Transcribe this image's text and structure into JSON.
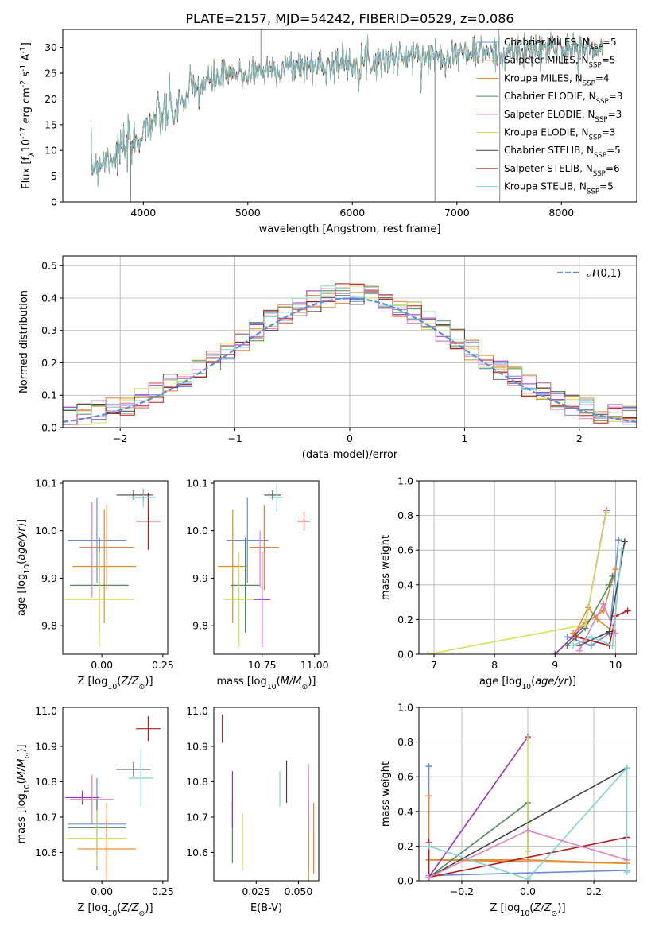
{
  "figure_title": "PLATE=2157, MJD=54242, FIBERID=0529, z=0.086",
  "fits": [
    {
      "label": "Chabrier MILES, N$_{SSP}$=5",
      "color": "#6b8fd6"
    },
    {
      "label": "Salpeter MILES, N$_{SSP}$=5",
      "color": "#e8823a"
    },
    {
      "label": "Kroupa MILES, N$_{SSP}$=4",
      "color": "#d9912b"
    },
    {
      "label": "Chabrier ELODIE, N$_{SSP}$=3",
      "color": "#4e8c5a"
    },
    {
      "label": "Salpeter ELODIE, N$_{SSP}$=3",
      "color": "#9b30c0"
    },
    {
      "label": "Kroupa ELODIE, N$_{SSP}$=3",
      "color": "#d4e05a"
    },
    {
      "label": "Chabrier STELIB, N$_{SSP}$=5",
      "color": "#444444"
    },
    {
      "label": "Salpeter STELIB, N$_{SSP}$=6",
      "color": "#b31b1b"
    },
    {
      "label": "Kroupa STELIB, N$_{SSP}$=5",
      "color": "#7fd3d8"
    }
  ],
  "chart_data": [
    {
      "id": "spectrum",
      "type": "line",
      "xlabel": "wavelength [Angstrom, rest frame]",
      "ylabel": "Flux [f$_\\lambda$10$^{-17}$ erg cm$^{-2}$ s$^{-1}$ A$^{-1}$]",
      "xlim": [
        3230,
        8720
      ],
      "ylim": [
        0,
        33.5
      ],
      "xticks": [
        4000,
        5000,
        6000,
        7000,
        8000
      ],
      "yticks": [
        0,
        5,
        10,
        15,
        20,
        25,
        30
      ],
      "continuum": {
        "x": [
          3500,
          3700,
          3900,
          4000,
          4100,
          4300,
          4500,
          4700,
          5000,
          5300,
          5600,
          6000,
          6400,
          6800,
          7200,
          7600,
          8000,
          8300,
          8400
        ],
        "y": [
          7,
          9,
          11,
          14,
          16,
          18,
          22,
          24,
          25,
          26,
          26.5,
          27,
          28,
          28.5,
          29,
          29,
          30,
          29.5,
          30
        ]
      },
      "spikes": [
        {
          "x": 5125,
          "y": 33.5
        },
        {
          "x": 6790,
          "y": 0
        },
        {
          "x": 7410,
          "y": 0
        },
        {
          "x": 3880,
          "y": 0
        }
      ]
    },
    {
      "id": "residuals",
      "type": "histogram",
      "xlabel": "(data-model)/error",
      "ylabel": "Normed distribution",
      "xlim": [
        -2.5,
        2.5
      ],
      "ylim": [
        0,
        0.53
      ],
      "xticks": [
        -2,
        -1,
        0,
        1,
        2
      ],
      "yticks": [
        0.0,
        0.1,
        0.2,
        0.3,
        0.4,
        0.5
      ],
      "gaussian_label": "$\\mathcal{N}(0,1)$",
      "gaussian_color": "#5b8dd9"
    },
    {
      "id": "z-age",
      "type": "scatter",
      "xlabel": "Z [log$_{10}$($Z/Z_\\odot$)]",
      "ylabel": "age  [log$_{10}$($age/yr$)]",
      "xlim": [
        -0.16,
        0.27
      ],
      "ylim": [
        9.74,
        10.105
      ],
      "xticks": [
        0.0,
        0.25
      ],
      "yticks": [
        9.8,
        9.9,
        10.0,
        10.1
      ],
      "points": [
        {
          "x": -0.02,
          "y": 9.98,
          "xerr": 0.12,
          "yerr": 0.09,
          "c": 0
        },
        {
          "x": 0.02,
          "y": 9.965,
          "xerr": 0.11,
          "yerr": 0.09,
          "c": 1
        },
        {
          "x": 0.01,
          "y": 9.925,
          "xerr": 0.13,
          "yerr": 0.12,
          "c": 2
        },
        {
          "x": -0.01,
          "y": 9.885,
          "xerr": 0.12,
          "yerr": 0.1,
          "c": 3
        },
        {
          "x": 0.17,
          "y": 10.075,
          "xerr": 0.04,
          "yerr": 0.01,
          "c": 4
        },
        {
          "x": -0.01,
          "y": 9.855,
          "xerr": 0.14,
          "yerr": 0.1,
          "c": 5
        },
        {
          "x": 0.13,
          "y": 10.075,
          "xerr": 0.07,
          "yerr": 0.01,
          "c": 6
        },
        {
          "x": 0.19,
          "y": 10.02,
          "xerr": 0.05,
          "yerr": 0.06,
          "c": 7
        },
        {
          "x": 0.17,
          "y": 10.07,
          "xerr": 0.05,
          "yerr": 0.02,
          "c": 8
        },
        {
          "x": -0.04,
          "y": 9.96,
          "xerr": 0.0,
          "yerr": 0.1,
          "c": 9
        }
      ]
    },
    {
      "id": "mass-age",
      "type": "scatter",
      "xlabel": "mass [log$_{10}$($M/M_\\odot$)]",
      "ylabel": "",
      "xlim": [
        10.52,
        11.02
      ],
      "ylim": [
        9.74,
        10.105
      ],
      "xticks": [
        10.75,
        11.0
      ],
      "yticks": [
        9.8,
        9.9,
        10.0,
        10.1
      ],
      "points": [
        {
          "x": 10.68,
          "y": 9.98,
          "xerr": 0.1,
          "yerr": 0.09,
          "c": 0
        },
        {
          "x": 10.76,
          "y": 9.965,
          "xerr": 0.07,
          "yerr": 0.09,
          "c": 1
        },
        {
          "x": 10.61,
          "y": 9.925,
          "xerr": 0.07,
          "yerr": 0.12,
          "c": 2
        },
        {
          "x": 10.67,
          "y": 9.885,
          "xerr": 0.07,
          "yerr": 0.1,
          "c": 3
        },
        {
          "x": 10.75,
          "y": 9.855,
          "xerr": 0.04,
          "yerr": 0.1,
          "c": 4
        },
        {
          "x": 10.64,
          "y": 9.855,
          "xerr": 0.07,
          "yerr": 0.1,
          "c": 5
        },
        {
          "x": 10.8,
          "y": 10.075,
          "xerr": 0.04,
          "yerr": 0.01,
          "c": 6
        },
        {
          "x": 10.95,
          "y": 10.02,
          "xerr": 0.03,
          "yerr": 0.02,
          "c": 7
        },
        {
          "x": 10.82,
          "y": 10.07,
          "xerr": 0.03,
          "yerr": 0.03,
          "c": 8
        },
        {
          "x": 10.74,
          "y": 9.94,
          "xerr": 0.0,
          "yerr": 0.06,
          "c": 9
        }
      ]
    },
    {
      "id": "age-weight",
      "type": "line",
      "xlabel": "age  [log$_{10}$($age/yr$)]",
      "ylabel": "mass weight",
      "xlim": [
        6.75,
        10.35
      ],
      "ylim": [
        0,
        1.0
      ],
      "xticks": [
        7,
        8,
        9,
        10
      ],
      "yticks": [
        0.0,
        0.2,
        0.4,
        0.6,
        0.8,
        1.0
      ],
      "series": [
        {
          "c": 0,
          "x": [
            9.2,
            9.6,
            9.9,
            10.05
          ],
          "y": [
            0.1,
            0.05,
            0.12,
            0.66
          ]
        },
        {
          "c": 1,
          "x": [
            9.3,
            9.5,
            9.8,
            10.0
          ],
          "y": [
            0.12,
            0.18,
            0.25,
            0.49
          ]
        },
        {
          "c": 2,
          "x": [
            9.3,
            9.55,
            9.7,
            10.0
          ],
          "y": [
            0.1,
            0.27,
            0.2,
            0.12
          ]
        },
        {
          "c": 3,
          "x": [
            9.2,
            9.5,
            9.9,
            9.95
          ],
          "y": [
            0.05,
            0.15,
            0.4,
            0.45
          ]
        },
        {
          "c": 4,
          "x": [
            9.0,
            9.5,
            9.85
          ],
          "y": [
            0.0,
            0.17,
            0.83
          ]
        },
        {
          "c": 5,
          "x": [
            6.9,
            9.5,
            9.85
          ],
          "y": [
            0.0,
            0.17,
            0.82
          ]
        },
        {
          "c": 6,
          "x": [
            9.4,
            9.9,
            10.15
          ],
          "y": [
            0.05,
            0.13,
            0.65
          ]
        },
        {
          "c": 7,
          "x": [
            9.35,
            9.9,
            10.0,
            10.2
          ],
          "y": [
            0.1,
            0.05,
            0.22,
            0.25
          ]
        },
        {
          "c": 8,
          "x": [
            9.3,
            9.6,
            9.95,
            10.1
          ],
          "y": [
            0.05,
            0.1,
            0.05,
            0.6
          ]
        },
        {
          "c": 9,
          "x": [
            9.4,
            9.8,
            10.0
          ],
          "y": [
            0.02,
            0.29,
            0.12
          ]
        }
      ]
    },
    {
      "id": "z-mass",
      "type": "scatter",
      "xlabel": "Z [log$_{10}$($Z/Z_\\odot$)]",
      "ylabel": "mass [log$_{10}$($M/M_\\odot$)]",
      "xlim": [
        -0.16,
        0.27
      ],
      "ylim": [
        10.52,
        11.01
      ],
      "xticks": [
        0.0,
        0.25
      ],
      "yticks": [
        10.6,
        10.7,
        10.8,
        10.9,
        11.0
      ],
      "points": [
        {
          "x": -0.02,
          "y": 10.68,
          "xerr": 0.12,
          "yerr": 0.13,
          "c": 0
        },
        {
          "x": 0.02,
          "y": 10.61,
          "xerr": 0.12,
          "yerr": 0.13,
          "c": 1
        },
        {
          "x": 0.02,
          "y": 10.6,
          "xerr": 0.0,
          "yerr": 0.1,
          "c": 2
        },
        {
          "x": -0.02,
          "y": 10.67,
          "xerr": 0.12,
          "yerr": 0.08,
          "c": 3
        },
        {
          "x": -0.08,
          "y": 10.755,
          "xerr": 0.07,
          "yerr": 0.02,
          "c": 4
        },
        {
          "x": -0.02,
          "y": 10.64,
          "xerr": 0.12,
          "yerr": 0.08,
          "c": 5
        },
        {
          "x": 0.13,
          "y": 10.835,
          "xerr": 0.07,
          "yerr": 0.02,
          "c": 6
        },
        {
          "x": 0.19,
          "y": 10.95,
          "xerr": 0.05,
          "yerr": 0.035,
          "c": 7
        },
        {
          "x": 0.16,
          "y": 10.81,
          "xerr": 0.05,
          "yerr": 0.08,
          "c": 8
        },
        {
          "x": -0.04,
          "y": 10.75,
          "xerr": 0.09,
          "yerr": 0.07,
          "c": 9
        }
      ]
    },
    {
      "id": "ebv-mass",
      "type": "scatter",
      "xlabel": "E(B-V)",
      "ylabel": "",
      "xlim": [
        0.0,
        0.062
      ],
      "ylim": [
        10.52,
        11.01
      ],
      "xticks": [
        0.025,
        0.05
      ],
      "yticks": [
        10.6,
        10.7,
        10.8,
        10.9,
        11.0
      ],
      "points": [
        {
          "x": 0.056,
          "y": 10.65,
          "xerr": 0.0,
          "yerr": 0.1,
          "c": 0
        },
        {
          "x": 0.059,
          "y": 10.64,
          "xerr": 0.0,
          "yerr": 0.1,
          "c": 1
        },
        {
          "x": 0.056,
          "y": 10.62,
          "xerr": 0.0,
          "yerr": 0.1,
          "c": 2
        },
        {
          "x": 0.011,
          "y": 10.66,
          "xerr": 0.0,
          "yerr": 0.09,
          "c": 3
        },
        {
          "x": 0.011,
          "y": 10.75,
          "xerr": 0.0,
          "yerr": 0.08,
          "c": 4
        },
        {
          "x": 0.017,
          "y": 10.63,
          "xerr": 0.0,
          "yerr": 0.08,
          "c": 5
        },
        {
          "x": 0.043,
          "y": 10.8,
          "xerr": 0.0,
          "yerr": 0.06,
          "c": 6
        },
        {
          "x": 0.005,
          "y": 10.95,
          "xerr": 0.0,
          "yerr": 0.04,
          "c": 7
        },
        {
          "x": 0.039,
          "y": 10.78,
          "xerr": 0.0,
          "yerr": 0.05,
          "c": 8
        },
        {
          "x": 0.056,
          "y": 10.75,
          "xerr": 0.0,
          "yerr": 0.1,
          "c": 9
        }
      ]
    },
    {
      "id": "z-weight",
      "type": "line",
      "xlabel": "Z [log$_{10}$($Z/Z_\\odot$)]",
      "ylabel": "mass weight",
      "xlim": [
        -0.33,
        0.33
      ],
      "ylim": [
        0,
        1.0
      ],
      "xticks": [
        -0.2,
        0.0,
        0.2
      ],
      "yticks": [
        0.0,
        0.2,
        0.4,
        0.6,
        0.8,
        1.0
      ],
      "series": [
        {
          "c": 0,
          "x": [
            -0.3,
            -0.3,
            0.3
          ],
          "y": [
            0.66,
            0.03,
            0.06
          ]
        },
        {
          "c": 1,
          "x": [
            -0.3,
            -0.3,
            0.3
          ],
          "y": [
            0.49,
            0.12,
            0.1
          ]
        },
        {
          "c": 2,
          "x": [
            -0.3,
            0.0,
            0.3
          ],
          "y": [
            0.12,
            0.12,
            0.1
          ]
        },
        {
          "c": 3,
          "x": [
            -0.3,
            0.0,
            0.0
          ],
          "y": [
            0.02,
            0.45,
            0.17
          ]
        },
        {
          "c": 4,
          "x": [
            -0.3,
            0.0
          ],
          "y": [
            0.02,
            0.83
          ]
        },
        {
          "c": 5,
          "x": [
            0.0,
            0.0
          ],
          "y": [
            0.17,
            0.82
          ]
        },
        {
          "c": 6,
          "x": [
            -0.3,
            0.3
          ],
          "y": [
            0.02,
            0.65
          ]
        },
        {
          "c": 7,
          "x": [
            -0.3,
            -0.3,
            0.3
          ],
          "y": [
            0.22,
            0.02,
            0.25
          ]
        },
        {
          "c": 8,
          "x": [
            -0.3,
            0.0,
            0.3,
            0.3
          ],
          "y": [
            0.2,
            0.01,
            0.65,
            0.05
          ]
        },
        {
          "c": 9,
          "x": [
            -0.3,
            0.0,
            0.3
          ],
          "y": [
            0.02,
            0.29,
            0.12
          ]
        }
      ]
    }
  ],
  "extra_colors": [
    "#e57fbf"
  ]
}
